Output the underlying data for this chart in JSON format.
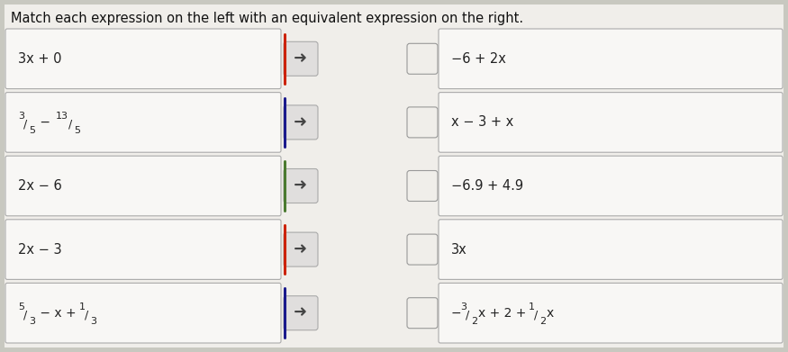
{
  "title": "Match each expression on the left with an equivalent expression on the right.",
  "left_expressions": [
    "3x + 0",
    "$^{3}/_{5} - ^{13}/_{5}$",
    "2x − 6",
    "2x − 3",
    "$^{5}/_{3} - x + ^{1}/_{3}$"
  ],
  "right_expressions": [
    "−6 + 2x",
    "x − 3 + x",
    "−6.9 + 4.9",
    "3x",
    "$-^{3}/_{2}x + 2 + ^{1}/_{2}x$"
  ],
  "left_texts": [
    "3x + 0",
    "3/5 − 13/5",
    "2x − 6",
    "2x − 3",
    "5/3 − x + 1/3"
  ],
  "right_texts": [
    "−6 + 2x",
    "x − 3 + x",
    "−6.9 + 4.9",
    "3x",
    "−3/2 x + 2 + 1/2 x"
  ],
  "arrow_colors": [
    "#cc2200",
    "#1a1a8c",
    "#4a7a30",
    "#cc2200",
    "#1a1a8c"
  ],
  "outer_bg": "#c8c8c0",
  "inner_bg": "#f0eeea",
  "box_fill": "#f8f7f5",
  "box_edge": "#aaaaaa",
  "arrow_box_fill": "#e0dedd",
  "arrow_box_edge": "#aaaaaa",
  "checkbox_fill": "#f0eeea",
  "checkbox_edge": "#999999",
  "title_fontsize": 10.5,
  "expr_fontsize": 10.5,
  "n_rows": 5,
  "fig_width": 8.75,
  "fig_height": 3.91
}
